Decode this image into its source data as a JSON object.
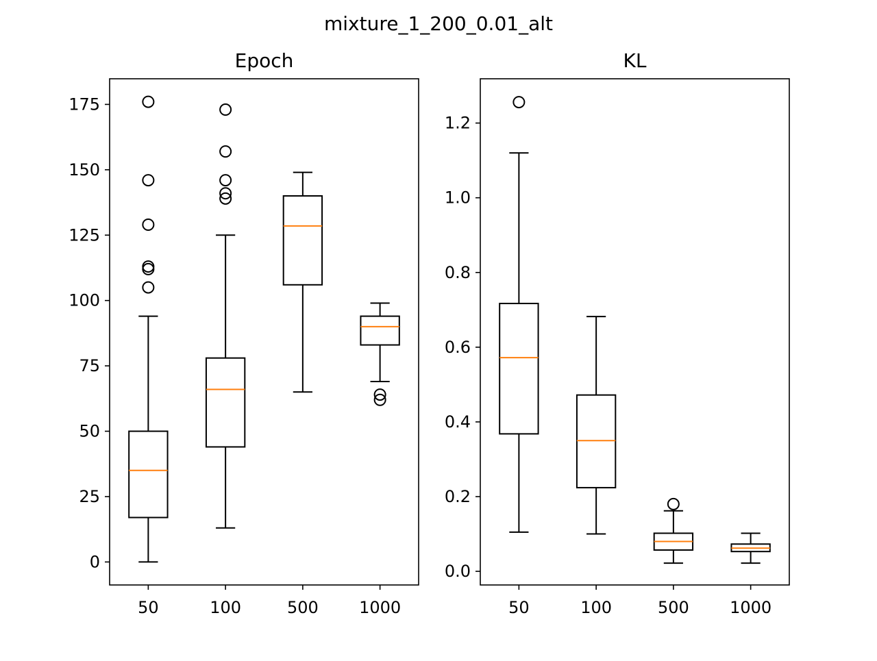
{
  "figure": {
    "suptitle": "mixture_1_200_0.01_alt"
  },
  "colors": {
    "box": "#000000",
    "median": "#ff7f0e",
    "background": "#ffffff"
  },
  "chart_data": [
    {
      "type": "box",
      "title": "Epoch",
      "xlabel": "",
      "ylabel": "",
      "categories": [
        "50",
        "100",
        "500",
        "1000"
      ],
      "ylim": [
        -8.8,
        184.8
      ],
      "yticks": [
        0,
        25,
        50,
        75,
        100,
        125,
        150,
        175
      ],
      "ytick_labels": [
        "0",
        "25",
        "50",
        "75",
        "100",
        "125",
        "150",
        "175"
      ],
      "boxes": [
        {
          "category": "50",
          "whislo": 0,
          "q1": 17,
          "med": 35,
          "q3": 50,
          "whishi": 94,
          "fliers": [
            105,
            112,
            113,
            129,
            146,
            176
          ]
        },
        {
          "category": "100",
          "whislo": 13,
          "q1": 44,
          "med": 66,
          "q3": 78,
          "whishi": 125,
          "fliers": [
            139,
            141,
            146,
            157,
            173
          ]
        },
        {
          "category": "500",
          "whislo": 65,
          "q1": 106,
          "med": 128.5,
          "q3": 140,
          "whishi": 149,
          "fliers": []
        },
        {
          "category": "1000",
          "whislo": 69,
          "q1": 83,
          "med": 90,
          "q3": 94,
          "whishi": 99,
          "fliers": [
            62,
            64
          ]
        }
      ]
    },
    {
      "type": "box",
      "title": "KL",
      "xlabel": "",
      "ylabel": "",
      "categories": [
        "50",
        "100",
        "500",
        "1000"
      ],
      "ylim": [
        -0.0365,
        1.3185
      ],
      "yticks": [
        0.0,
        0.2,
        0.4,
        0.6,
        0.8,
        1.0,
        1.2
      ],
      "ytick_labels": [
        "0.0",
        "0.2",
        "0.4",
        "0.6",
        "0.8",
        "1.0",
        "1.2"
      ],
      "boxes": [
        {
          "category": "50",
          "whislo": 0.105,
          "q1": 0.368,
          "med": 0.572,
          "q3": 0.717,
          "whishi": 1.12,
          "fliers": [
            1.256
          ]
        },
        {
          "category": "100",
          "whislo": 0.1,
          "q1": 0.224,
          "med": 0.35,
          "q3": 0.472,
          "whishi": 0.682,
          "fliers": []
        },
        {
          "category": "500",
          "whislo": 0.022,
          "q1": 0.057,
          "med": 0.08,
          "q3": 0.102,
          "whishi": 0.162,
          "fliers": [
            0.18
          ]
        },
        {
          "category": "1000",
          "whislo": 0.022,
          "q1": 0.053,
          "med": 0.062,
          "q3": 0.073,
          "whishi": 0.102,
          "fliers": []
        }
      ]
    }
  ]
}
